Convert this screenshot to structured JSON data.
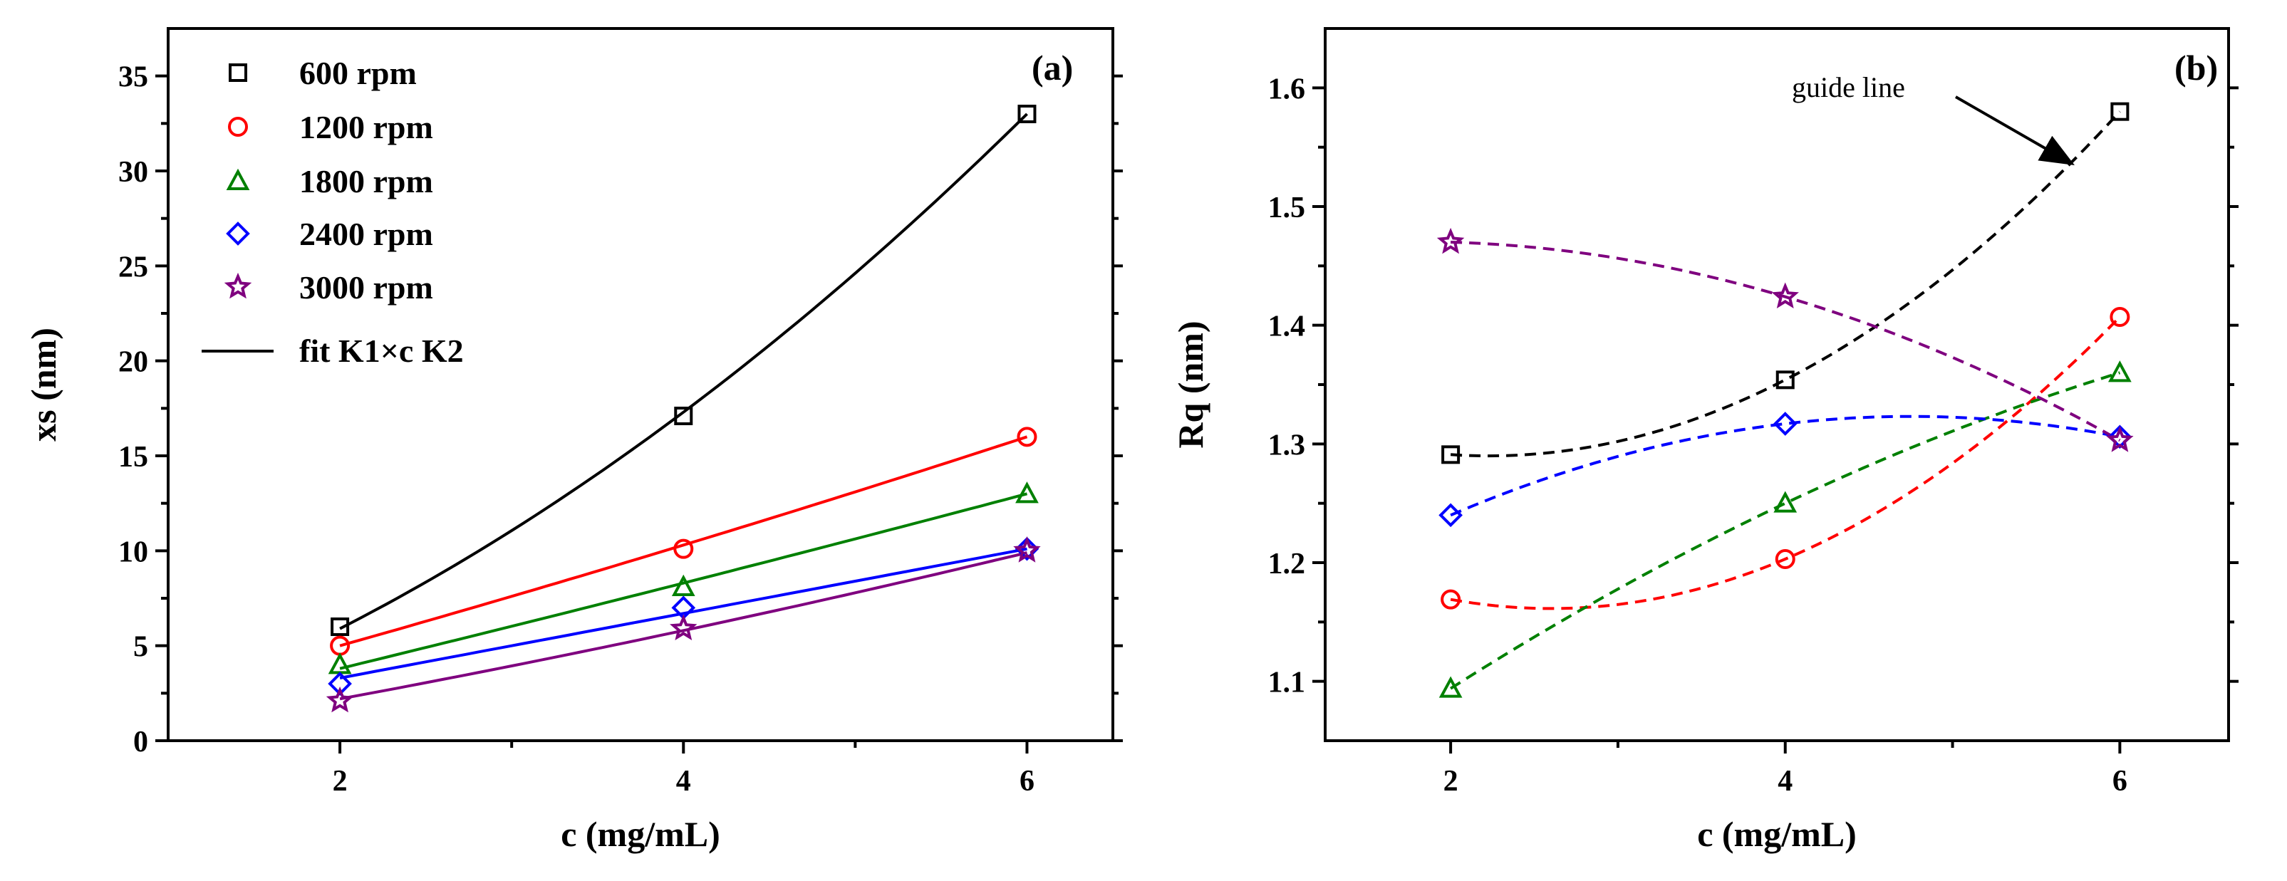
{
  "figure": {
    "panels": [
      {
        "panel_label": "(a)",
        "x_axis_title": "c (mg/mL)",
        "y_axis_title": "xs (nm)",
        "legend_fit_label": "fit K1×c K2"
      },
      {
        "panel_label": "(b)",
        "x_axis_title": "c (mg/mL)",
        "y_axis_title": "Rq (nm)",
        "annotation": "guide line"
      }
    ]
  },
  "chart_data": [
    {
      "type": "scatter",
      "panel": "(a)",
      "xlabel": "c (mg/mL)",
      "ylabel": "xs (nm)",
      "xlim": [
        1.0,
        6.5
      ],
      "ylim": [
        0,
        37.5
      ],
      "x_ticks": [
        2,
        4,
        6
      ],
      "y_ticks": [
        0,
        5,
        10,
        15,
        20,
        25,
        30,
        35
      ],
      "legend_position": "top-left",
      "fit_label": "fit K1×c K2",
      "x": [
        2,
        4,
        6
      ],
      "series": [
        {
          "name": "600 rpm",
          "marker": "square",
          "color": "#000000",
          "values": [
            6.0,
            17.1,
            33.0
          ],
          "fit": [
            5.9,
            17.3,
            33.0
          ]
        },
        {
          "name": "1200 rpm",
          "marker": "circle",
          "color": "#ff0000",
          "values": [
            5.0,
            10.1,
            16.0
          ],
          "fit": [
            5.0,
            10.3,
            16.0
          ]
        },
        {
          "name": "1800 rpm",
          "marker": "triangle",
          "color": "#008000",
          "values": [
            4.0,
            8.1,
            13.0
          ],
          "fit": [
            3.8,
            8.3,
            13.0
          ]
        },
        {
          "name": "2400 rpm",
          "marker": "diamond",
          "color": "#0000ff",
          "values": [
            3.0,
            7.0,
            10.1
          ],
          "fit": [
            3.3,
            6.7,
            10.1
          ]
        },
        {
          "name": "3000 rpm",
          "marker": "star",
          "color": "#7f007f",
          "values": [
            2.1,
            5.9,
            10.0
          ],
          "fit": [
            2.2,
            5.8,
            9.9
          ]
        }
      ]
    },
    {
      "type": "scatter",
      "panel": "(b)",
      "xlabel": "c (mg/mL)",
      "ylabel": "Rq (nm)",
      "xlim": [
        1.25,
        6.65
      ],
      "ylim": [
        1.05,
        1.65
      ],
      "x_ticks": [
        2,
        4,
        6
      ],
      "y_ticks": [
        1.1,
        1.2,
        1.3,
        1.4,
        1.5,
        1.6
      ],
      "annotation": "guide line",
      "x": [
        2,
        4,
        6
      ],
      "series": [
        {
          "name": "600 rpm",
          "marker": "square",
          "color": "#000000",
          "values": [
            1.291,
            1.354,
            1.58
          ]
        },
        {
          "name": "1200 rpm",
          "marker": "circle",
          "color": "#ff0000",
          "values": [
            1.169,
            1.203,
            1.407
          ]
        },
        {
          "name": "1800 rpm",
          "marker": "triangle",
          "color": "#008000",
          "values": [
            1.094,
            1.25,
            1.36
          ]
        },
        {
          "name": "2400 rpm",
          "marker": "diamond",
          "color": "#0000ff",
          "values": [
            1.24,
            1.317,
            1.306
          ]
        },
        {
          "name": "3000 rpm",
          "marker": "star",
          "color": "#7f007f",
          "values": [
            1.47,
            1.424,
            1.303
          ]
        }
      ]
    }
  ]
}
